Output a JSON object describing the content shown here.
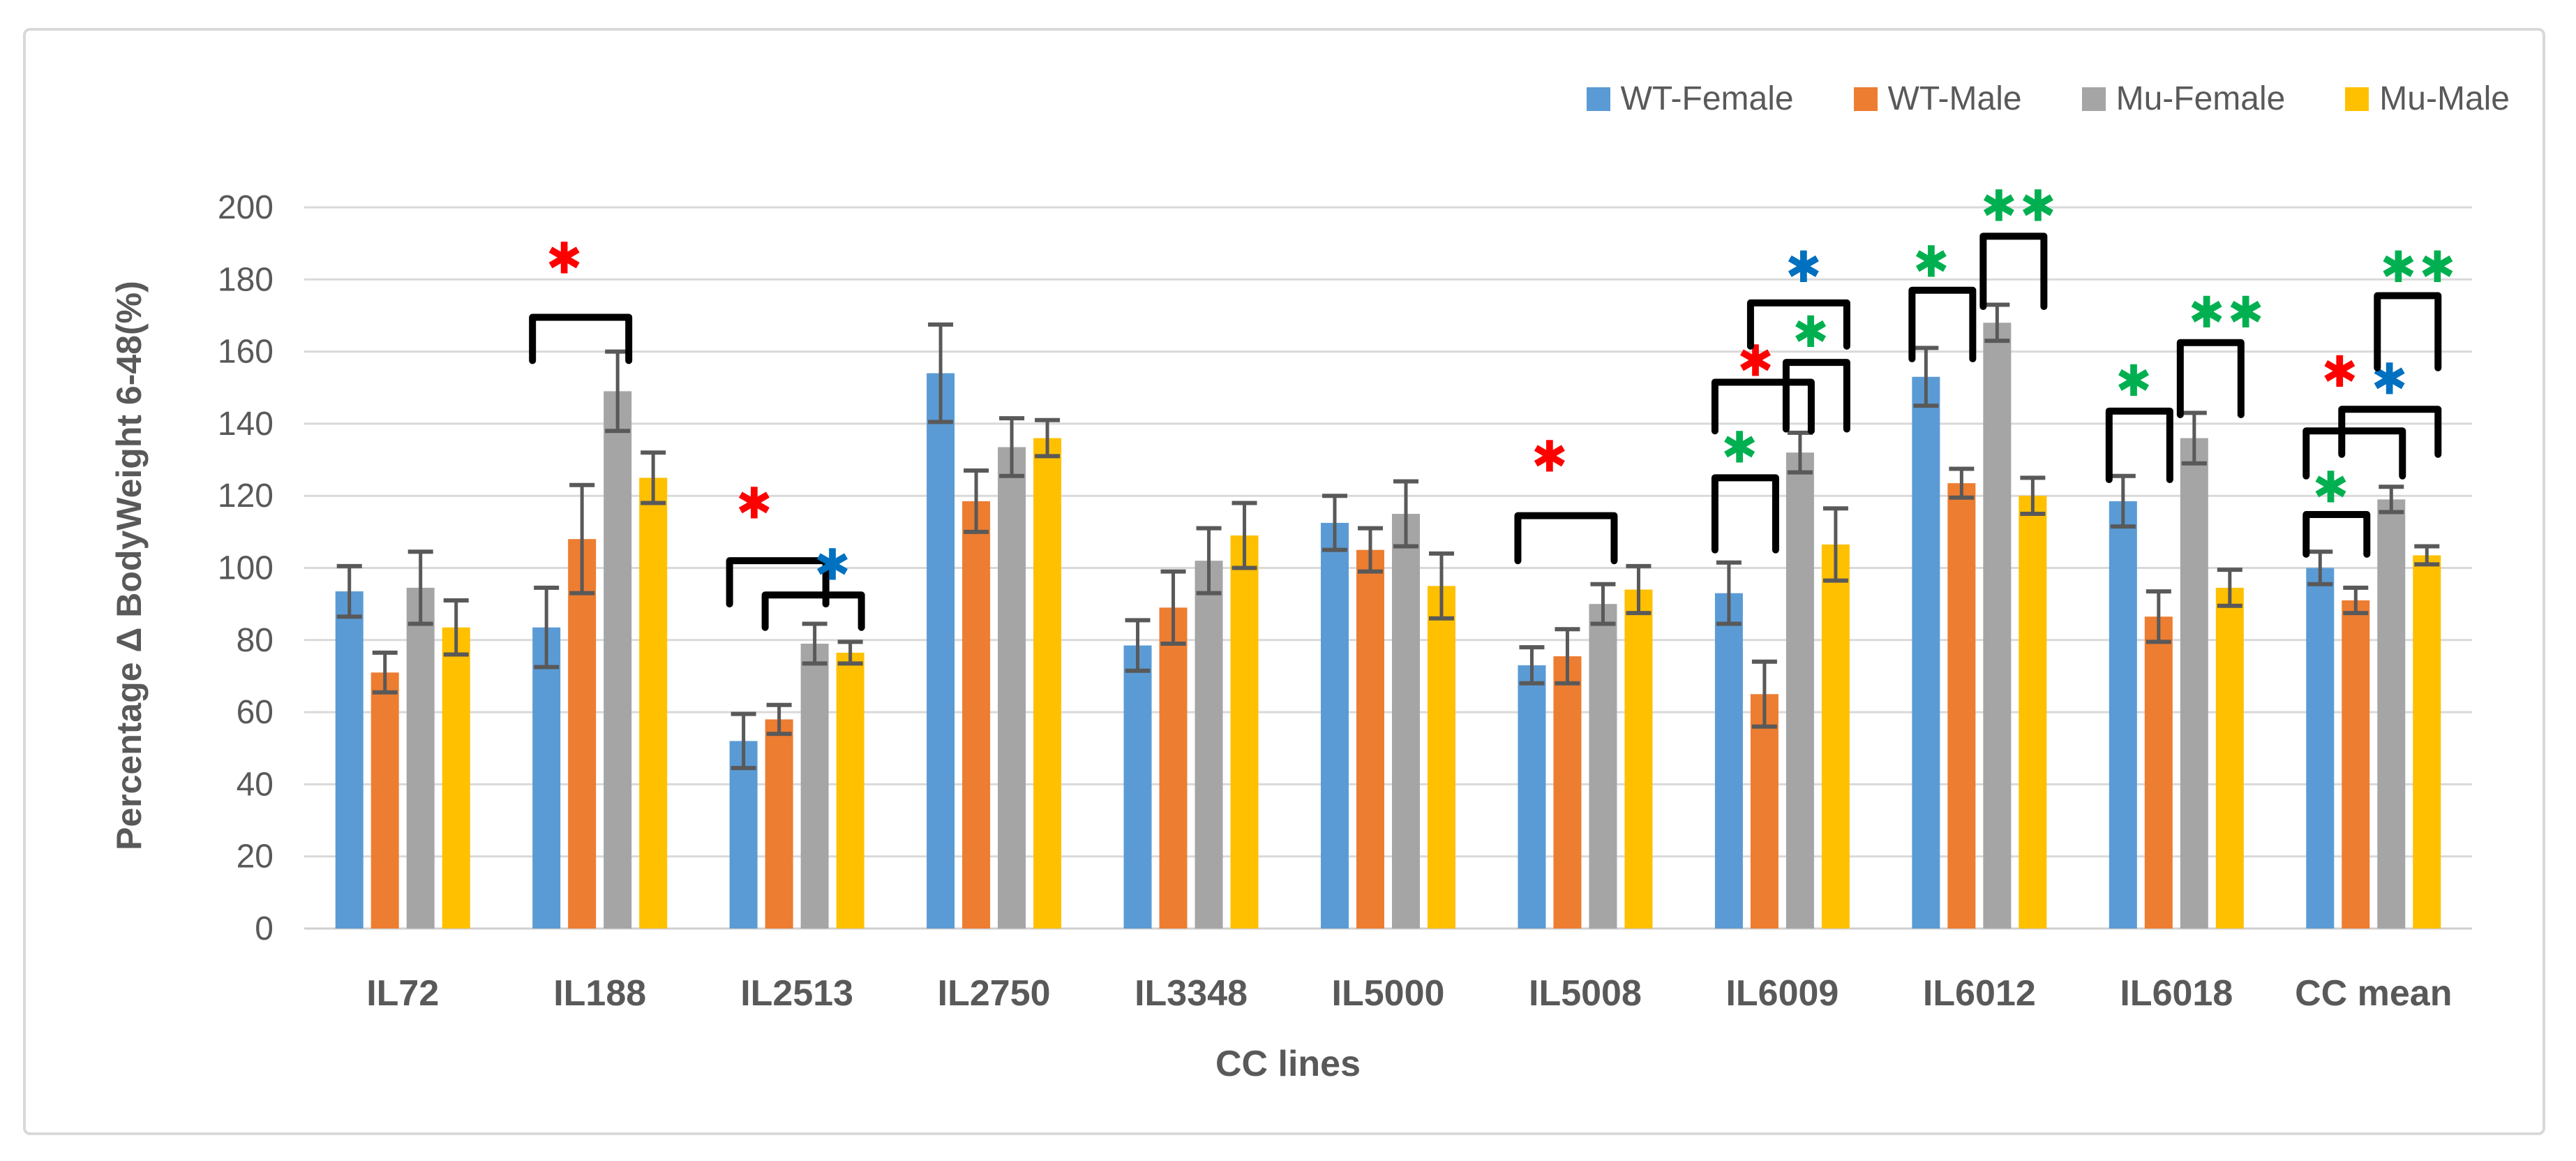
{
  "figure": {
    "background": "#FFFFFF",
    "border_color": "#D9D9D9"
  },
  "chart_data": {
    "type": "bar",
    "title": "",
    "xlabel": "CC lines",
    "ylabel": "Percentage Δ BodyWeight 6-48(%)",
    "ylim": [
      0,
      200
    ],
    "ytick_step": 20,
    "grid": true,
    "legend_position": "top-right",
    "gridline_color": "#D9D9D9",
    "axis_line_color": "#CFCFCF",
    "error_bar_color": "#595959",
    "bracket_color": "#000000",
    "star_char": "✱",
    "categories": [
      "IL72",
      "IL188",
      "IL2513",
      "IL2750",
      "IL3348",
      "IL5000",
      "IL5008",
      "IL6009",
      "IL6012",
      "IL6018",
      "CC mean"
    ],
    "series": [
      {
        "name": "WT-Female",
        "color": "#5B9BD5",
        "values": [
          93.5,
          83.5,
          52,
          154,
          78.5,
          112.5,
          73,
          93,
          153,
          118.5,
          100
        ],
        "errors": [
          7,
          11,
          7.5,
          13.5,
          7,
          7.5,
          5,
          8.5,
          8,
          7,
          4.5
        ]
      },
      {
        "name": "WT-Male",
        "color": "#ED7D31",
        "values": [
          71,
          108,
          58,
          118.5,
          89,
          105,
          75.5,
          65,
          123.5,
          86.5,
          91
        ],
        "errors": [
          5.5,
          15,
          4,
          8.5,
          10,
          6,
          7.5,
          9,
          4,
          7,
          3.5
        ]
      },
      {
        "name": "Mu-Female",
        "color": "#A5A5A5",
        "values": [
          94.5,
          149,
          79,
          133.5,
          102,
          115,
          90,
          132,
          168,
          136,
          119
        ],
        "errors": [
          10,
          11,
          5.5,
          8,
          9,
          9,
          5.5,
          5.5,
          5,
          7,
          3.5
        ]
      },
      {
        "name": "Mu-Male",
        "color": "#FFC000",
        "values": [
          83.5,
          125,
          76.5,
          136,
          109,
          95,
          94,
          106.5,
          120,
          94.5,
          103.5
        ],
        "errors": [
          7.5,
          7,
          3,
          5,
          9,
          9,
          6.5,
          10,
          5,
          5,
          2.5
        ]
      }
    ],
    "significance": [
      {
        "category": "IL188",
        "from": 0,
        "to": 2,
        "bracket_y": 169.5,
        "drop": 12,
        "stars": "*",
        "star_color": "#FF0000",
        "star_pos": 0.5,
        "star_y": 186
      },
      {
        "category": "IL2513",
        "from": 0,
        "to": 2,
        "bracket_y": 102,
        "drop": 12,
        "stars": "*",
        "star_color": "#FF0000",
        "star_pos": 0.3,
        "star_y": 118
      },
      {
        "category": "IL2513",
        "from": 1,
        "to": 3,
        "bracket_y": 92.5,
        "drop": 9,
        "stars": "*",
        "star_color": "#0070C0",
        "star_pos": 2.5,
        "star_y": 101
      },
      {
        "category": "IL5008",
        "from": 0,
        "to": 2,
        "bracket_y": 114.5,
        "drop": 12.5,
        "stars": "*",
        "star_color": "#FF0000",
        "star_pos": 0.5,
        "star_y": 131
      },
      {
        "category": "IL6009",
        "from": 0,
        "to": 1,
        "bracket_y": 125,
        "drop": 20,
        "stars": "*",
        "star_color": "#00B050",
        "star_pos": 0.3,
        "star_y": 133.5
      },
      {
        "category": "IL6009",
        "from": 0,
        "to": 2,
        "bracket_y": 151.5,
        "drop": 13.5,
        "stars": "*",
        "star_color": "#FF0000",
        "star_pos": 0.75,
        "star_y": 157.5
      },
      {
        "category": "IL6009",
        "from": 2,
        "to": 3,
        "bracket_y": 157,
        "drop": 18.5,
        "stars": "*",
        "star_color": "#00B050",
        "star_pos": 2.3,
        "star_y": 165.5
      },
      {
        "category": "IL6009",
        "from": 1,
        "to": 3,
        "bracket_y": 173.5,
        "drop": 12,
        "stars": "*",
        "star_color": "#0070C0",
        "star_pos": 2.1,
        "star_y": 183.5
      },
      {
        "category": "IL6012",
        "from": 0,
        "to": 1,
        "bracket_y": 177,
        "drop": 19,
        "stars": "*",
        "star_color": "#00B050",
        "star_pos": 0.15,
        "star_y": 185
      },
      {
        "category": "IL6012",
        "from": 2,
        "to": 3,
        "bracket_y": 192,
        "drop": 19.5,
        "stars": "**",
        "star_color": "#00B050",
        "star_pos": 2.6,
        "star_y": 200.5
      },
      {
        "category": "IL6018",
        "from": 0,
        "to": 1,
        "bracket_y": 143.5,
        "drop": 19,
        "stars": "*",
        "star_color": "#00B050",
        "star_pos": 0.3,
        "star_y": 152
      },
      {
        "category": "IL6018",
        "from": 2,
        "to": 3,
        "bracket_y": 162.5,
        "drop": 20,
        "stars": "**",
        "star_color": "#00B050",
        "star_pos": 2.9,
        "star_y": 171
      },
      {
        "category": "CC mean",
        "from": 0,
        "to": 1,
        "bracket_y": 114.8,
        "drop": 11,
        "stars": "*",
        "star_color": "#00B050",
        "star_pos": 0.3,
        "star_y": 122.5
      },
      {
        "category": "CC mean",
        "from": 0,
        "to": 2,
        "bracket_y": 138,
        "drop": 12.5,
        "stars": "*",
        "star_color": "#FF0000",
        "star_pos": 0.55,
        "star_y": 154.5
      },
      {
        "category": "CC mean",
        "from": 1,
        "to": 3,
        "bracket_y": 144,
        "drop": 12.5,
        "stars": "*",
        "star_color": "#0070C0",
        "star_pos": 1.95,
        "star_y": 152.5
      },
      {
        "category": "CC mean",
        "from": 2,
        "to": 3,
        "bracket_y": 175.5,
        "drop": 20,
        "stars": "**",
        "star_color": "#00B050",
        "star_pos": 2.75,
        "star_y": 183.5
      }
    ]
  }
}
